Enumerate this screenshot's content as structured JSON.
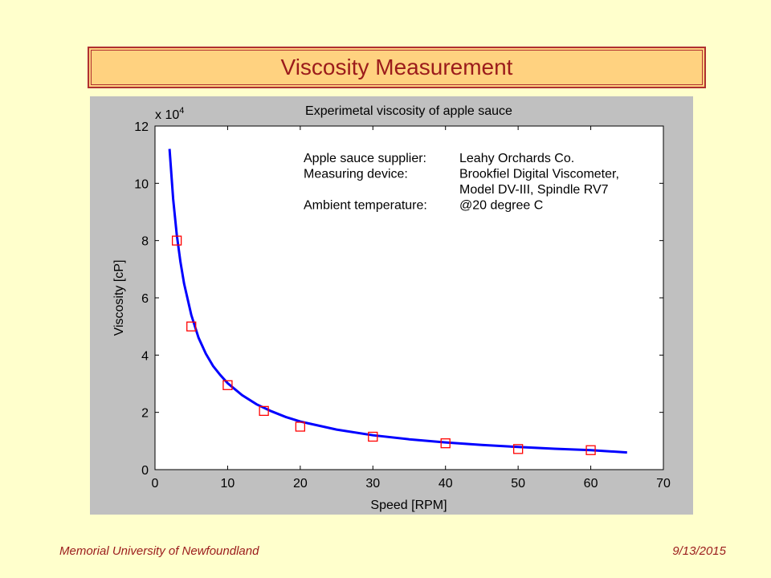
{
  "slide": {
    "title": "Viscosity Measurement",
    "footer_left": "Memorial University of Newfoundland",
    "footer_right": "9/13/2015"
  },
  "colors": {
    "background": "#ffffcc",
    "title_fill": "#ffd280",
    "title_border": "#b03030",
    "title_text": "#9b1b1b",
    "panel": "#c0c0c0",
    "curve": "#0000ff",
    "markers": "#ff0000"
  },
  "chart_data": {
    "type": "line",
    "title": "Experimetal viscosity of apple sauce",
    "xlabel": "Speed [RPM]",
    "ylabel": "Viscosity [cP]",
    "y_multiplier": "x 10",
    "y_multiplier_exp": "4",
    "xlim": [
      0,
      70
    ],
    "ylim": [
      0,
      12
    ],
    "xticks": [
      0,
      10,
      20,
      30,
      40,
      50,
      60,
      70
    ],
    "yticks": [
      0,
      2,
      4,
      6,
      8,
      10,
      12
    ],
    "grid": false,
    "annotations": [
      {
        "label": "Apple sauce supplier:",
        "value": "Leahy Orchards Co."
      },
      {
        "label": "Measuring device:",
        "value": "Brookfiel Digital Viscometer,"
      },
      {
        "label": "",
        "value": "Model  DV-III, Spindle RV7"
      },
      {
        "label": "Ambient temperature:",
        "value": "@20 degree C"
      }
    ],
    "series": [
      {
        "marker": "square",
        "x": [
          3,
          5,
          10,
          15,
          20,
          30,
          40,
          50,
          60
        ],
        "y": [
          8.0,
          5.0,
          2.95,
          2.05,
          1.5,
          1.15,
          0.92,
          0.72,
          0.68
        ]
      },
      {
        "style": "line",
        "x": [
          2,
          2.5,
          3,
          3.5,
          4,
          5,
          6,
          7,
          8,
          9,
          10,
          12,
          14,
          16,
          18,
          20,
          25,
          30,
          35,
          40,
          45,
          50,
          55,
          60,
          65
        ],
        "y": [
          11.2,
          9.45,
          8.2,
          7.25,
          6.5,
          5.4,
          4.6,
          4.05,
          3.62,
          3.3,
          3.02,
          2.6,
          2.28,
          2.04,
          1.84,
          1.68,
          1.4,
          1.2,
          1.06,
          0.95,
          0.86,
          0.79,
          0.73,
          0.68,
          0.6
        ]
      }
    ]
  }
}
